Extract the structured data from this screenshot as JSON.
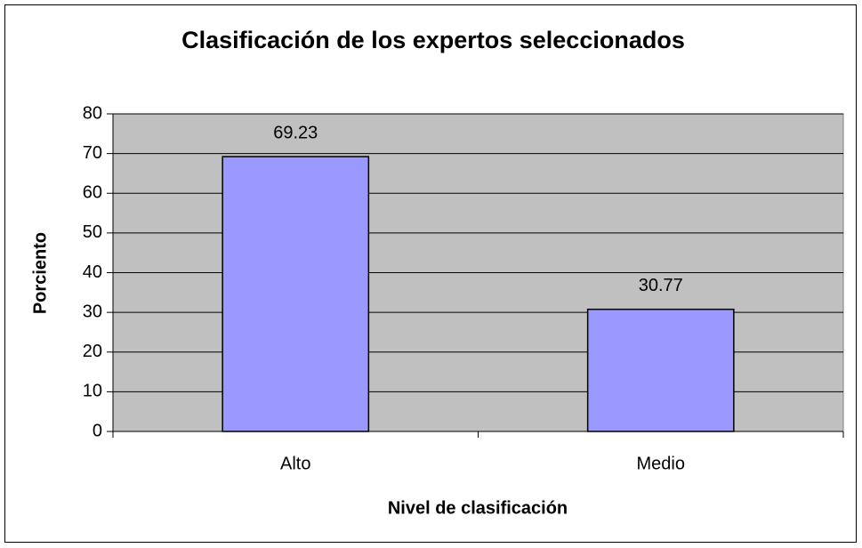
{
  "chart_data": {
    "type": "bar",
    "title": "Clasificación de los expertos seleccionados",
    "x_label": "Nivel de clasificación",
    "y_label": "Porciento",
    "categories": [
      "Alto",
      "Medio"
    ],
    "values": [
      69.23,
      30.77
    ],
    "color": "#9999ff",
    "ylim": [
      0,
      80
    ],
    "yticks": [
      0,
      10,
      20,
      30,
      40,
      50,
      60,
      70,
      80
    ],
    "grid": true,
    "plot_background": "#c0c0c0"
  }
}
